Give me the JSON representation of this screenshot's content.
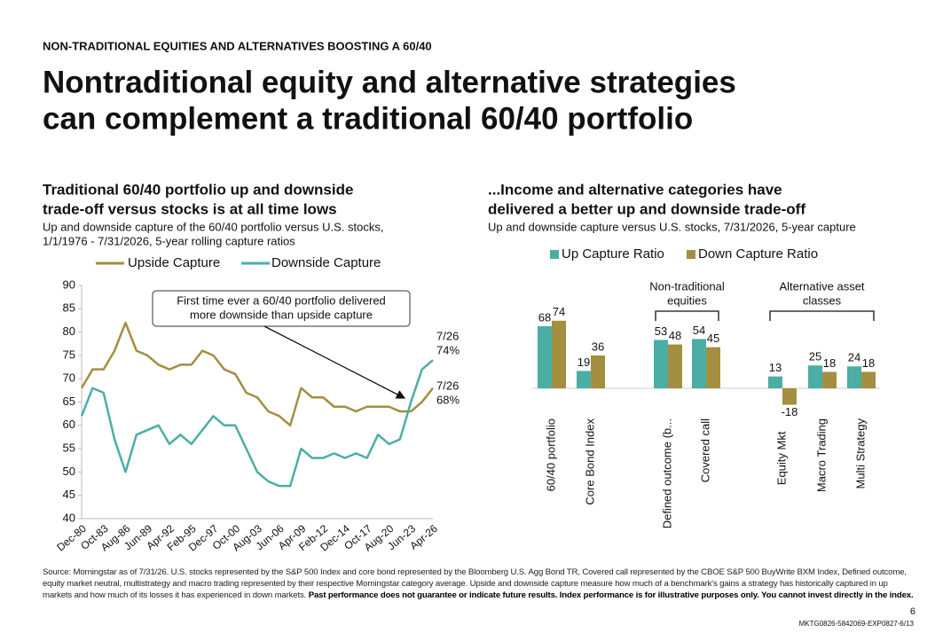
{
  "header": {
    "eyebrow": "NON-TRADITIONAL EQUITIES AND ALTERNATIVES BOOSTING A 60/40",
    "title": [
      "Nontraditional equity and alternative strategies",
      "can complement a traditional 60/40 portfolio"
    ]
  },
  "chart_data": [
    {
      "type": "line",
      "title": [
        "Traditional 60/40 portfolio up and downside",
        "trade-off versus stocks is at all time lows"
      ],
      "subtitle": [
        "Up and downside capture of the 60/40 portfolio versus U.S. stocks,",
        "1/1/1976 - 7/31/2026, 5-year rolling capture ratios"
      ],
      "categories": [
        "Dec-80",
        null,
        "Oct-83",
        null,
        "Aug-86",
        null,
        "Jun-89",
        null,
        "Apr-92",
        null,
        "Feb-95",
        null,
        "Dec-97",
        null,
        "Oct-00",
        null,
        "Aug-03",
        null,
        "Jun-06",
        null,
        "Apr-09",
        null,
        "Feb-12",
        null,
        "Dec-14",
        null,
        "Oct-17",
        null,
        "Aug-20",
        null,
        "Jun-23",
        null,
        "Apr-26"
      ],
      "series": [
        {
          "name": "Upside Capture",
          "color": "#a48e3f",
          "values": [
            68,
            72,
            72,
            76,
            82,
            76,
            75,
            73,
            72,
            73,
            73,
            76,
            75,
            72,
            71,
            67,
            66,
            63,
            62,
            60,
            68,
            66,
            66,
            64,
            64,
            63,
            64,
            64,
            64,
            63,
            63,
            65,
            68
          ]
        },
        {
          "name": "Downside Capture",
          "color": "#4aaea5",
          "values": [
            62,
            68,
            67,
            57,
            50,
            58,
            59,
            60,
            56,
            58,
            56,
            59,
            62,
            60,
            60,
            55,
            50,
            48,
            47,
            47,
            55,
            53,
            53,
            54,
            53,
            54,
            53,
            58,
            56,
            57,
            65,
            72,
            74
          ]
        }
      ],
      "ylim": [
        40,
        90
      ],
      "yticks": [
        40,
        45,
        50,
        55,
        60,
        65,
        70,
        75,
        80,
        85,
        90
      ],
      "annotations": {
        "callout": [
          "First time ever a 60/40 portfolio delivered",
          "more downside than upside capture"
        ],
        "end_labels": [
          [
            "7/26",
            "74%"
          ],
          [
            "7/26",
            "68%"
          ]
        ]
      }
    },
    {
      "type": "bar",
      "title": [
        "...Income and alternative categories have",
        "delivered a better up and downside trade-off"
      ],
      "subtitle": "Up and downside capture versus U.S. stocks, 7/31/2026, 5-year capture",
      "categories": [
        "60/40 portfolio",
        "Core Bond Index",
        "Defined outcome (b...",
        "Covered call",
        "Equity Mkt",
        "Macro Trading",
        "Multi Strategy"
      ],
      "series": [
        {
          "name": "Up Capture Ratio",
          "color": "#4aaea5",
          "values": [
            68,
            19,
            53,
            54,
            13,
            25,
            24
          ]
        },
        {
          "name": "Down Capture Ratio",
          "color": "#a48e3f",
          "values": [
            74,
            36,
            48,
            45,
            -18,
            18,
            18
          ]
        }
      ],
      "groups": [
        [
          "Non-traditional",
          "equities"
        ],
        [
          "Alternative asset",
          "classes"
        ]
      ]
    }
  ],
  "footer": {
    "source": "Source: Morningstar as of 7/31/26. U.S. stocks represented by the S&P 500 Index and core bond represented by the Bloomberg U.S. Agg Bond TR, Covered call represented by the CBOE S&P 500 BuyWrite BXM Index, Defined outcome, equity market neutral, multistrategy and macro trading represented by their respective Morningstar category average. Upside and downside capture measure how much of a benchmark's gains a strategy has historically captured in up markets and how much of its losses it has experienced in down markets.",
    "disclaimer": "Past performance does not guarantee or indicate future results. Index performance is for illustrative purposes only. You cannot invest directly in the index.",
    "page": "6",
    "code": "MKTG0826-5842069-EXP0827-6/13"
  }
}
